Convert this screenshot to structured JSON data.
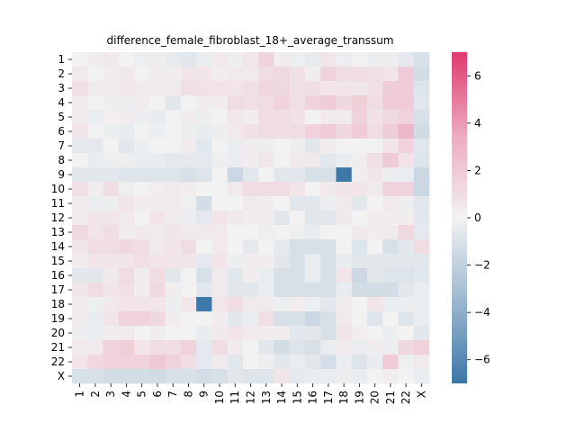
{
  "chart_data": {
    "type": "heatmap",
    "title": "difference_female_fibroblast_18+_average_transsum",
    "x_labels": [
      "1",
      "2",
      "3",
      "4",
      "5",
      "6",
      "7",
      "8",
      "9",
      "10",
      "11",
      "12",
      "13",
      "14",
      "15",
      "16",
      "17",
      "18",
      "19",
      "20",
      "21",
      "22",
      "X"
    ],
    "y_labels": [
      "1",
      "2",
      "3",
      "4",
      "5",
      "6",
      "7",
      "8",
      "9",
      "10",
      "11",
      "12",
      "13",
      "14",
      "15",
      "16",
      "17",
      "18",
      "19",
      "20",
      "21",
      "22",
      "X"
    ],
    "colorbar": {
      "vmin": -7,
      "vmax": 7,
      "ticks": [
        -6,
        -4,
        -2,
        0,
        2,
        4,
        6
      ],
      "tick_labels": [
        "−6",
        "−4",
        "−2",
        "0",
        "2",
        "4",
        "6"
      ],
      "low_color": "#3b76a8",
      "mid_color": "#f2f2f2",
      "high_color": "#e03a6e"
    },
    "values": [
      [
        0.0,
        0.2,
        0.3,
        0.0,
        -0.2,
        -0.2,
        -0.4,
        -0.6,
        -0.3,
        0.3,
        -0.2,
        0.4,
        1.2,
        0.2,
        -0.2,
        -0.4,
        0.5,
        -0.2,
        0.0,
        -0.2,
        -0.2,
        -0.5,
        -1.0
      ],
      [
        0.3,
        0.0,
        0.2,
        0.3,
        0.0,
        0.2,
        0.2,
        0.5,
        0.5,
        0.2,
        0.3,
        0.3,
        0.8,
        1.0,
        0.7,
        0.2,
        1.2,
        0.8,
        0.8,
        0.7,
        0.5,
        1.5,
        -1.2
      ],
      [
        0.7,
        0.3,
        0.3,
        0.4,
        0.3,
        0.3,
        0.3,
        0.7,
        0.6,
        0.6,
        0.5,
        0.7,
        1.1,
        1.0,
        0.7,
        0.7,
        0.5,
        0.5,
        0.4,
        0.7,
        1.4,
        1.4,
        -0.8
      ],
      [
        0.2,
        0.0,
        -0.2,
        -0.2,
        0.2,
        0.0,
        -0.6,
        0.0,
        0.2,
        0.2,
        0.8,
        0.7,
        0.8,
        1.2,
        0.7,
        1.2,
        1.4,
        1.0,
        1.3,
        0.8,
        1.5,
        1.5,
        -0.7
      ],
      [
        0.2,
        -0.3,
        0.1,
        0.2,
        -0.2,
        -0.3,
        0.0,
        0.2,
        -0.2,
        0.0,
        0.4,
        0.2,
        0.8,
        0.8,
        0.6,
        0.0,
        0.3,
        0.3,
        1.2,
        0.6,
        1.0,
        1.2,
        -1.0
      ],
      [
        0.5,
        0.0,
        -0.2,
        -0.3,
        0.0,
        -0.2,
        0.0,
        -0.2,
        -0.3,
        -0.2,
        0.3,
        0.6,
        0.8,
        0.8,
        0.8,
        1.2,
        1.5,
        1.0,
        1.5,
        0.8,
        1.4,
        2.2,
        -1.3
      ],
      [
        -0.5,
        -0.5,
        0.0,
        -0.6,
        -0.2,
        0.0,
        0.0,
        0.2,
        -0.6,
        0.0,
        -0.3,
        0.2,
        -0.2,
        0.0,
        -0.2,
        -0.6,
        0.2,
        0.0,
        0.0,
        0.0,
        0.5,
        1.2,
        -0.7
      ],
      [
        0.0,
        -0.3,
        -0.2,
        -0.2,
        -0.3,
        -0.3,
        -0.5,
        -0.5,
        -0.5,
        -0.2,
        -0.3,
        0.2,
        0.4,
        0.0,
        0.3,
        0.3,
        -0.6,
        -0.3,
        0.2,
        0.7,
        1.5,
        0.6,
        -0.8
      ],
      [
        -0.6,
        -0.6,
        -0.6,
        -0.8,
        -0.8,
        -0.8,
        -0.8,
        -1.0,
        -0.8,
        0.0,
        -1.5,
        -0.6,
        0.0,
        -0.6,
        -0.6,
        -1.0,
        -1.0,
        -6.9,
        0.2,
        0.5,
        -0.2,
        -0.3,
        -1.5
      ],
      [
        0.7,
        0.2,
        0.8,
        -0.2,
        0.0,
        0.2,
        0.3,
        0.2,
        0.0,
        0.0,
        0.3,
        0.8,
        0.8,
        0.8,
        0.5,
        0.0,
        0.3,
        0.5,
        0.5,
        0.3,
        1.2,
        1.2,
        -1.5
      ],
      [
        0.3,
        -0.3,
        -0.2,
        0.5,
        0.2,
        0.2,
        0.3,
        -0.2,
        -1.2,
        0.0,
        0.0,
        0.3,
        0.2,
        0.0,
        -0.6,
        -0.6,
        -0.2,
        0.3,
        -0.6,
        0.0,
        0.3,
        -0.2,
        -0.6
      ],
      [
        0.3,
        0.5,
        0.5,
        0.3,
        0.0,
        0.5,
        0.2,
        -0.2,
        -0.5,
        0.5,
        0.3,
        0.2,
        0.2,
        -0.6,
        0.0,
        -0.6,
        -0.6,
        0.3,
        0.0,
        0.2,
        0.2,
        0.2,
        -0.6
      ],
      [
        1.0,
        0.5,
        0.8,
        0.2,
        0.3,
        0.3,
        0.5,
        0.3,
        0.3,
        0.3,
        0.0,
        0.0,
        -0.2,
        0.0,
        -0.2,
        -0.3,
        0.0,
        0.0,
        0.3,
        0.2,
        0.3,
        1.0,
        -0.5
      ],
      [
        0.5,
        0.8,
        0.8,
        1.0,
        0.8,
        0.3,
        0.5,
        0.8,
        0.0,
        0.3,
        0.0,
        -0.5,
        0.0,
        -0.5,
        -1.0,
        -1.0,
        -1.0,
        0.0,
        -0.8,
        0.0,
        -1.0,
        -0.6,
        0.8
      ],
      [
        0.3,
        0.5,
        0.5,
        0.5,
        0.7,
        0.5,
        0.5,
        0.5,
        -0.5,
        0.5,
        -0.2,
        0.2,
        0.2,
        -0.6,
        -1.0,
        -0.3,
        -1.0,
        -0.3,
        -0.6,
        -0.6,
        -0.6,
        -0.6,
        -0.6
      ],
      [
        -0.6,
        -0.6,
        0.3,
        0.8,
        0.2,
        0.8,
        -0.6,
        0.0,
        -1.0,
        0.3,
        -0.6,
        0.2,
        -0.3,
        -1.0,
        -1.0,
        -0.3,
        -1.0,
        0.5,
        -1.5,
        -0.6,
        -0.8,
        -0.8,
        -0.6
      ],
      [
        0.5,
        0.8,
        0.5,
        0.7,
        0.2,
        1.0,
        0.2,
        0.0,
        -0.6,
        0.3,
        -0.6,
        -0.6,
        -0.3,
        -1.0,
        -1.0,
        -1.0,
        -1.0,
        -0.3,
        -1.2,
        -1.2,
        -1.2,
        -0.6,
        -0.3
      ],
      [
        0.3,
        -0.2,
        0.3,
        0.5,
        0.5,
        0.5,
        -0.2,
        0.5,
        -6.9,
        0.5,
        0.8,
        0.3,
        0.3,
        -0.2,
        0.2,
        -0.2,
        -0.6,
        0.2,
        0.0,
        0.5,
        -0.3,
        -0.2,
        -0.3
      ],
      [
        0.2,
        -0.3,
        0.5,
        1.2,
        1.2,
        1.0,
        0.2,
        0.0,
        0.0,
        0.2,
        -0.6,
        -0.3,
        0.7,
        -1.0,
        -1.0,
        -1.5,
        -1.0,
        0.3,
        0.0,
        -0.8,
        0.0,
        -0.8,
        -0.3
      ],
      [
        -0.2,
        -0.3,
        0.2,
        0.3,
        0.0,
        0.2,
        0.0,
        0.0,
        -0.3,
        0.3,
        0.5,
        0.3,
        0.2,
        0.2,
        -0.6,
        -0.6,
        -1.0,
        0.5,
        0.2,
        0.0,
        -0.2,
        0.0,
        -0.6
      ],
      [
        0.3,
        0.3,
        1.2,
        1.3,
        0.5,
        0.8,
        0.8,
        1.2,
        -0.5,
        0.8,
        0.3,
        0.0,
        -0.6,
        -1.2,
        -0.8,
        -1.0,
        -0.3,
        0.3,
        -0.3,
        0.2,
        -0.2,
        1.0,
        1.2
      ],
      [
        0.5,
        1.0,
        1.2,
        1.2,
        1.2,
        1.6,
        1.2,
        0.8,
        -0.5,
        0.3,
        -0.6,
        0.0,
        -0.2,
        -0.6,
        -0.3,
        -0.6,
        -1.2,
        -0.2,
        -0.8,
        -0.3,
        1.5,
        -0.2,
        0.3
      ],
      [
        -1.0,
        -1.0,
        -1.2,
        -1.2,
        -1.2,
        -1.3,
        -1.0,
        -1.0,
        -1.2,
        -1.0,
        -0.6,
        -0.8,
        -0.8,
        0.5,
        -0.5,
        -0.3,
        -0.3,
        -0.2,
        -0.3,
        0.0,
        0.2,
        0.0,
        -0.3
      ]
    ]
  }
}
